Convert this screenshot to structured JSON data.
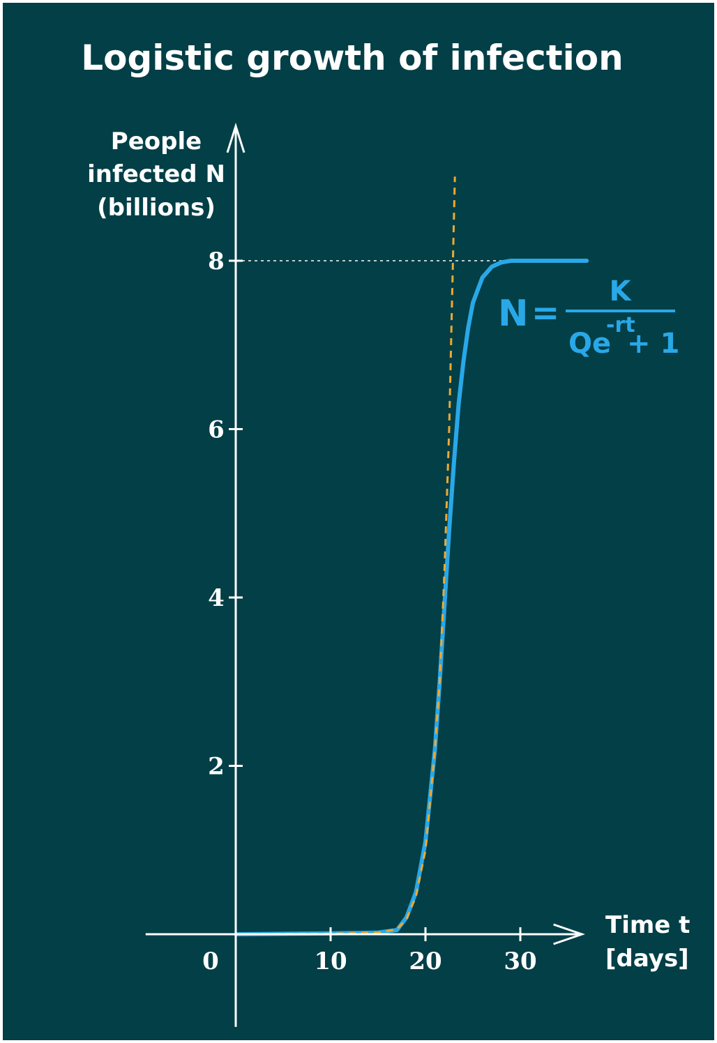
{
  "chart_data": {
    "type": "line",
    "title": "Logistic growth of infection",
    "ylabel_lines": [
      "People",
      "infected N",
      "(billions)"
    ],
    "xlabel_lines": [
      "Time t",
      "[days]"
    ],
    "xlim": [
      -9.5,
      37
    ],
    "ylim": [
      -1.4,
      9.5
    ],
    "x_ticks": [
      10,
      20,
      30
    ],
    "x_tick_labels": [
      "10",
      "20",
      "30"
    ],
    "origin_label": "0",
    "y_ticks": [
      2,
      4,
      6,
      8
    ],
    "y_tick_labels": [
      "2",
      "4",
      "6",
      "8"
    ],
    "grid": false,
    "series": [
      {
        "style": "solid",
        "color": "#29a8e8",
        "x": [
          0,
          5,
          10,
          15,
          17,
          18,
          19,
          20,
          21,
          21.5,
          22,
          22.5,
          23,
          23.5,
          24,
          24.5,
          25,
          26,
          27,
          28,
          29,
          30,
          33,
          37
        ],
        "y": [
          0,
          0.005,
          0.01,
          0.02,
          0.05,
          0.2,
          0.5,
          1.1,
          2.2,
          3.0,
          3.9,
          4.8,
          5.6,
          6.3,
          6.8,
          7.2,
          7.5,
          7.8,
          7.93,
          7.98,
          8.0,
          8.0,
          8.0,
          8.0
        ]
      },
      {
        "style": "dashed",
        "color": "#f0a830",
        "x": [
          0,
          10,
          15,
          17,
          18,
          19,
          20,
          21,
          21.5,
          22,
          22.5,
          22.9,
          23.1
        ],
        "y": [
          0,
          0.005,
          0.02,
          0.06,
          0.18,
          0.45,
          1.0,
          2.2,
          3.0,
          4.3,
          6.0,
          8.0,
          9.0
        ]
      }
    ],
    "annotations": {
      "reference_value": 8,
      "formula": {
        "lhs": "N",
        "equals": "=",
        "numerator": "K",
        "denominator_base": "Qe",
        "denominator_exp": "-rt",
        "denominator_tail": "+ 1"
      }
    }
  },
  "colors": {
    "background": "#033f47",
    "axes": "#ffffff",
    "logistic": "#29a8e8",
    "exponential": "#f0a830"
  }
}
